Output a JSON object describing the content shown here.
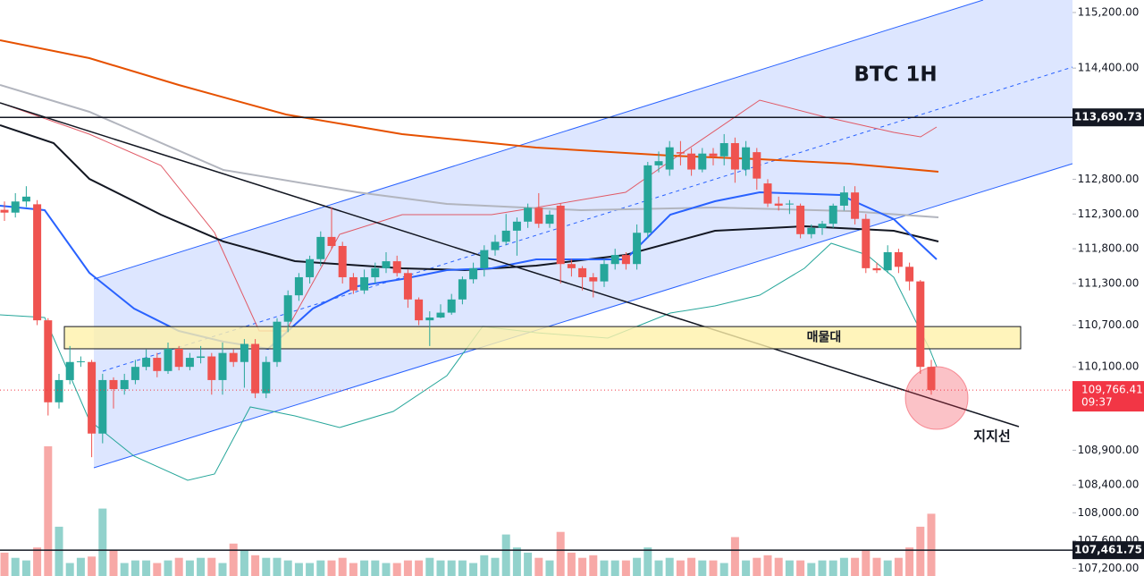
{
  "chart_data": {
    "type": "candlestick",
    "title": "BTC 1H",
    "up_color": "#26a69a",
    "down_color": "#ef5350",
    "ylim": [
      107090,
      115380
    ],
    "yticks": [
      {
        "value": 115200,
        "label": "115,200.00"
      },
      {
        "value": 114400,
        "label": "114,400.00"
      },
      {
        "value": 112800,
        "label": "112,800.00"
      },
      {
        "value": 112300,
        "label": "112,300.00"
      },
      {
        "value": 111800,
        "label": "111,800.00"
      },
      {
        "value": 111300,
        "label": "111,300.00"
      },
      {
        "value": 110700,
        "label": "110,700.00"
      },
      {
        "value": 110100,
        "label": "110,100.00"
      },
      {
        "value": 108900,
        "label": "108,900.00"
      },
      {
        "value": 108400,
        "label": "108,400.00"
      },
      {
        "value": 108000,
        "label": "108,000.00"
      },
      {
        "value": 107600,
        "label": "107,600.00"
      },
      {
        "value": 107200,
        "label": "107,200.00"
      }
    ],
    "levels": [
      {
        "value": 113690.73,
        "label": "113,690.73"
      },
      {
        "value": 107461.75,
        "label": "107,461.75"
      }
    ],
    "current": {
      "value": 109766.41,
      "label": "109,766.41",
      "countdown": "09:37"
    },
    "zone": {
      "label": "매물대",
      "from": 110360,
      "to": 110680
    },
    "support_label": "지지선",
    "open": [
      112360,
      112320,
      112480,
      112440,
      110770,
      109590,
      109910,
      110170,
      110170,
      109140,
      109910,
      109780,
      109910,
      110100,
      110230,
      110040,
      110360,
      110100,
      110230,
      110250,
      109910,
      110300,
      110170,
      110430,
      109720,
      110170,
      110750,
      111130,
      111390,
      111650,
      111970,
      111840,
      111390,
      111200,
      111390,
      111520,
      111620,
      111450,
      111070,
      110770,
      110810,
      110880,
      111070,
      111360,
      111520,
      111780,
      111900,
      112060,
      112190,
      112390,
      112160,
      112420,
      111580,
      111520,
      111390,
      111330,
      111580,
      111710,
      111580,
      112030,
      113000,
      112940,
      113190,
      113170,
      112940,
      113170,
      113130,
      113320,
      112940,
      113190,
      112740,
      112450,
      112450,
      112420,
      112010,
      112100,
      112160,
      112420,
      112610,
      112230,
      111520,
      111490,
      111750,
      111540,
      111330,
      110100
    ],
    "high": [
      112480,
      112600,
      112700,
      112500,
      110800,
      110000,
      110400,
      110250,
      110200,
      110000,
      109950,
      110000,
      110200,
      110350,
      110300,
      110450,
      110400,
      110300,
      110400,
      110300,
      110450,
      110350,
      110500,
      110500,
      110250,
      110800,
      111200,
      111450,
      111700,
      112050,
      112400,
      111900,
      111450,
      111500,
      111600,
      111750,
      111700,
      111500,
      111100,
      110900,
      111000,
      111150,
      111400,
      111600,
      111850,
      112000,
      112300,
      112250,
      112450,
      112600,
      112350,
      112450,
      111650,
      111550,
      111450,
      111650,
      111800,
      111750,
      112150,
      113050,
      113200,
      113350,
      113350,
      113250,
      113250,
      113250,
      113450,
      113400,
      113350,
      113250,
      112800,
      112550,
      112500,
      112450,
      112150,
      112200,
      112450,
      112700,
      112700,
      112300,
      111600,
      111850,
      111800,
      111600,
      111350,
      110200
    ],
    "low": [
      112200,
      112250,
      112400,
      110700,
      109400,
      109500,
      109850,
      110100,
      108800,
      109000,
      109500,
      109700,
      109850,
      110050,
      109950,
      110000,
      110050,
      110050,
      110150,
      109700,
      109700,
      110100,
      109800,
      109650,
      109650,
      110100,
      110600,
      111050,
      111300,
      111550,
      111800,
      111300,
      111150,
      111150,
      111300,
      111450,
      111400,
      110950,
      110700,
      110400,
      110800,
      110850,
      111000,
      111300,
      111400,
      111700,
      111850,
      111700,
      112100,
      112100,
      112100,
      111300,
      111400,
      111200,
      111100,
      111250,
      111500,
      111500,
      111500,
      111950,
      112900,
      112850,
      113000,
      112850,
      112900,
      113000,
      113000,
      112750,
      112850,
      112650,
      112400,
      112350,
      112300,
      111950,
      111950,
      112000,
      112100,
      112350,
      112150,
      111450,
      111450,
      111450,
      111450,
      111200,
      110000,
      109700
    ],
    "close": [
      112320,
      112480,
      112550,
      110770,
      109590,
      109910,
      110170,
      110180,
      109140,
      109910,
      109780,
      109910,
      110100,
      110230,
      110040,
      110360,
      110100,
      110230,
      110250,
      109910,
      110300,
      110170,
      110430,
      109720,
      110170,
      110750,
      111130,
      111390,
      111650,
      111970,
      111840,
      111390,
      111200,
      111390,
      111520,
      111620,
      111450,
      111070,
      110770,
      110810,
      110880,
      111070,
      111360,
      111520,
      111780,
      111900,
      112060,
      112190,
      112390,
      112160,
      112290,
      111580,
      111520,
      111390,
      111330,
      111580,
      111710,
      111580,
      112030,
      113000,
      113060,
      113260,
      113170,
      112940,
      113170,
      113130,
      113320,
      112940,
      113260,
      112810,
      112450,
      112420,
      112450,
      112010,
      112100,
      112160,
      112420,
      112610,
      112230,
      111520,
      111490,
      111750,
      111540,
      111330,
      110100,
      109766.41
    ],
    "volume": [
      18,
      14,
      12,
      22,
      100,
      38,
      10,
      14,
      15,
      52,
      20,
      10,
      12,
      12,
      10,
      12,
      14,
      12,
      14,
      14,
      10,
      25,
      20,
      16,
      14,
      14,
      12,
      10,
      10,
      12,
      12,
      14,
      10,
      12,
      12,
      10,
      10,
      12,
      12,
      14,
      12,
      12,
      12,
      10,
      16,
      14,
      32,
      22,
      18,
      14,
      12,
      34,
      18,
      14,
      16,
      12,
      12,
      12,
      14,
      22,
      12,
      14,
      12,
      14,
      12,
      12,
      10,
      30,
      12,
      14,
      16,
      14,
      12,
      12,
      10,
      12,
      12,
      14,
      14,
      20,
      14,
      12,
      14,
      22,
      38,
      48
    ]
  }
}
